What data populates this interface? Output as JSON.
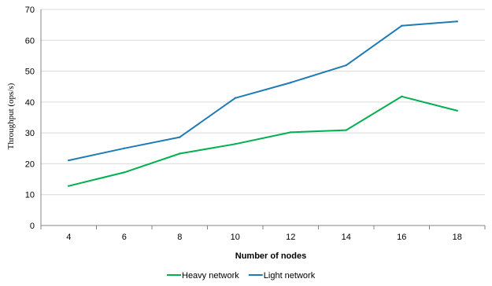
{
  "chart_data": {
    "type": "line",
    "x": [
      4,
      6,
      8,
      10,
      12,
      14,
      16,
      18
    ],
    "xlabel": "Number of nodes",
    "ylabel": "Throughput (ops/s)",
    "ylim": [
      0,
      70
    ],
    "yticks": [
      0,
      10,
      20,
      30,
      40,
      50,
      60,
      70
    ],
    "grid": "horizontal",
    "legend": "bottom",
    "series": [
      {
        "name": "Heavy network",
        "color": "#00b050",
        "values": [
          12.8,
          17.2,
          23.3,
          26.4,
          30.2,
          30.9,
          41.8,
          37.2
        ]
      },
      {
        "name": "Light network",
        "color": "#1f7bb6",
        "values": [
          21.1,
          25.0,
          28.6,
          41.3,
          46.3,
          51.9,
          64.7,
          66.1
        ]
      }
    ]
  }
}
